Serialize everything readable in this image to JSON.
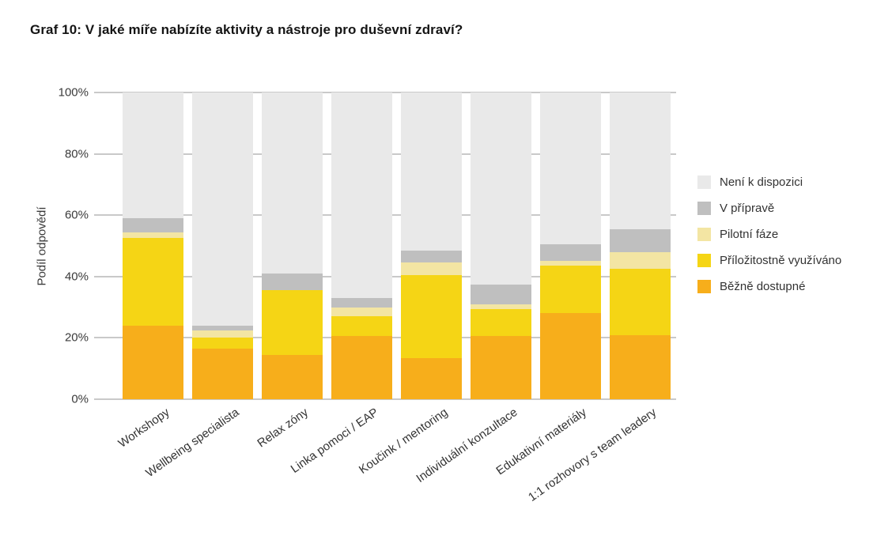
{
  "title": "Graf 10: V jaké míře nabízíte aktivity a nástroje pro duševní zdraví?",
  "chart_data": {
    "type": "bar",
    "stacked": true,
    "percent": true,
    "title": "Graf 10: V jaké míře nabízíte aktivity a nástroje pro duševní zdraví?",
    "xlabel": "",
    "ylabel": "Podíl odpovědí",
    "ylim": [
      0,
      100
    ],
    "yticks": [
      "0%",
      "20%",
      "40%",
      "60%",
      "80%",
      "100%"
    ],
    "grid": true,
    "legend_position": "right",
    "categories": [
      "Workshopy",
      "Wellbeing specialista",
      "Relax zóny",
      "Linka pomoci / EAP",
      "Koučink / mentoring",
      "Individuální konzultace",
      "Edukativní materiály",
      "1:1 rozhovory s team leadery"
    ],
    "series": [
      {
        "name": "Běžně dostupné",
        "color": "#F7AE1B",
        "values": [
          24,
          16.5,
          14.5,
          20.5,
          13.5,
          20.5,
          28,
          21
        ]
      },
      {
        "name": "Příložitostně využíváno",
        "color": "#F5D515",
        "values": [
          28.5,
          3.5,
          21,
          6.5,
          27,
          9,
          15.5,
          21.5
        ]
      },
      {
        "name": "Pilotní fáze",
        "color": "#F3E5A3",
        "values": [
          2,
          2.5,
          0,
          3,
          4,
          1.5,
          1.5,
          5.5
        ]
      },
      {
        "name": "V přípravě",
        "color": "#BFBFBF",
        "values": [
          4.5,
          1.5,
          5.5,
          3,
          4,
          6.5,
          5.5,
          7.5
        ]
      },
      {
        "name": "Není k dispozici",
        "color": "#E9E9E9",
        "values": [
          41,
          76,
          59,
          67,
          51.5,
          62.5,
          49.5,
          44.5
        ]
      }
    ]
  }
}
